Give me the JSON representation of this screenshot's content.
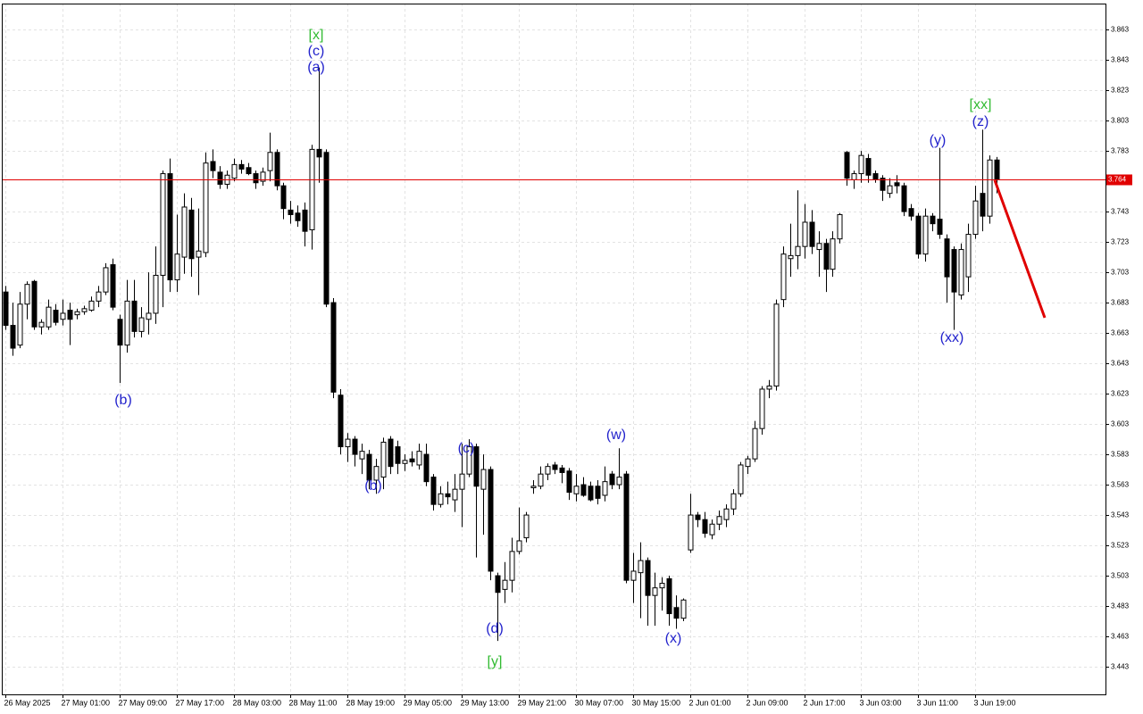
{
  "chart_data": {
    "type": "candlestick",
    "up_color": "#ffffff",
    "down_color": "#000000",
    "wick_color": "#000000",
    "price_line_color": "#e00000",
    "grid": true,
    "xlim": [
      -0.5,
      154.25
    ],
    "ylim": [
      3.4248,
      3.8801
    ],
    "yticks": [
      3.863,
      3.843,
      3.823,
      3.803,
      3.783,
      3.743,
      3.723,
      3.703,
      3.683,
      3.663,
      3.643,
      3.623,
      3.603,
      3.583,
      3.563,
      3.543,
      3.523,
      3.503,
      3.483,
      3.463,
      3.443
    ],
    "current_price": 3.764,
    "xticks": [
      {
        "value": 0,
        "label": "26 May 2025"
      },
      {
        "value": 8,
        "label": "27 May 01:00"
      },
      {
        "value": 16,
        "label": "27 May 09:00"
      },
      {
        "value": 24,
        "label": "27 May 17:00"
      },
      {
        "value": 32,
        "label": "28 May 03:00"
      },
      {
        "value": 40,
        "label": "28 May 11:00"
      },
      {
        "value": 48,
        "label": "28 May 19:00"
      },
      {
        "value": 56,
        "label": "29 May 05:00"
      },
      {
        "value": 64,
        "label": "29 May 13:00"
      },
      {
        "value": 72,
        "label": "29 May 21:00"
      },
      {
        "value": 80,
        "label": "30 May 07:00"
      },
      {
        "value": 88,
        "label": "30 May 15:00"
      },
      {
        "value": 96,
        "label": "2 Jun 01:00"
      },
      {
        "value": 104,
        "label": "2 Jun 09:00"
      },
      {
        "value": 112,
        "label": "2 Jun 17:00"
      },
      {
        "value": 120,
        "label": "3 Jun 03:00"
      },
      {
        "value": 128,
        "label": "3 Jun 11:00"
      },
      {
        "value": 136,
        "label": "3 Jun 19:00"
      }
    ],
    "open": [
      3.69,
      3.668,
      3.655,
      3.682,
      3.697,
      3.667,
      3.667,
      3.678,
      3.672,
      3.678,
      3.675,
      3.677,
      3.678,
      3.684,
      3.69,
      3.708,
      3.672,
      3.655,
      3.684,
      3.664,
      3.672,
      3.676,
      3.701,
      3.768,
      3.698,
      3.713,
      3.744,
      3.713,
      3.716,
      3.776,
      3.769,
      3.761,
      3.765,
      3.774,
      3.772,
      3.768,
      3.763,
      3.77,
      3.782,
      3.76,
      3.744,
      3.742,
      3.744,
      3.731,
      3.784,
      3.782,
      3.683,
      3.622,
      3.588,
      3.593,
      3.58,
      3.583,
      3.566,
      3.568,
      3.593,
      3.588,
      3.577,
      3.58,
      3.576,
      3.583,
      3.568,
      3.55,
      3.557,
      3.553,
      3.56,
      3.57,
      3.588,
      3.56,
      3.573,
      3.503,
      3.494,
      3.5,
      3.519,
      3.528,
      3.561,
      3.562,
      3.57,
      3.576,
      3.574,
      3.572,
      3.557,
      3.563,
      3.562,
      3.562,
      3.556,
      3.57,
      3.563,
      3.57,
      3.5,
      3.505,
      3.513,
      3.49,
      3.495,
      3.501,
      3.482,
      3.475,
      3.52,
      3.543,
      3.54,
      3.53,
      3.537,
      3.54,
      3.547,
      3.557,
      3.575,
      3.58,
      3.6,
      3.626,
      3.628,
      3.685,
      3.712,
      3.714,
      3.72,
      3.736,
      3.718,
      3.722,
      3.705,
      3.725,
      3.782,
      3.764,
      3.768,
      3.778,
      3.768,
      3.765,
      3.755,
      3.762,
      3.76,
      3.745,
      3.74,
      3.715,
      3.74,
      3.738,
      3.725,
      3.718,
      3.688,
      3.7,
      3.728,
      3.755,
      3.74,
      3.777
    ],
    "high": [
      3.694,
      3.683,
      3.69,
      3.697,
      3.698,
      3.672,
      3.685,
      3.682,
      3.685,
      3.683,
      3.679,
      3.681,
      3.687,
      3.694,
      3.709,
      3.712,
      3.675,
      3.698,
      3.698,
      3.68,
      3.703,
      3.72,
      3.77,
      3.778,
      3.741,
      3.755,
      3.752,
      3.745,
      3.782,
      3.784,
      3.773,
      3.77,
      3.778,
      3.777,
      3.775,
      3.77,
      3.772,
      3.795,
      3.784,
      3.762,
      3.75,
      3.747,
      3.749,
      3.787,
      3.838,
      3.784,
      3.686,
      3.626,
      3.597,
      3.595,
      3.59,
      3.586,
      3.58,
      3.594,
      3.595,
      3.592,
      3.583,
      3.585,
      3.59,
      3.59,
      3.57,
      3.562,
      3.565,
      3.57,
      3.59,
      3.593,
      3.59,
      3.583,
      3.575,
      3.505,
      3.512,
      3.528,
      3.548,
      3.545,
      3.566,
      3.575,
      3.577,
      3.578,
      3.576,
      3.574,
      3.57,
      3.568,
      3.565,
      3.566,
      3.575,
      3.572,
      3.587,
      3.572,
      3.518,
      3.525,
      3.515,
      3.505,
      3.502,
      3.503,
      3.49,
      3.488,
      3.557,
      3.545,
      3.545,
      3.54,
      3.546,
      3.55,
      3.56,
      3.578,
      3.582,
      3.605,
      3.628,
      3.632,
      3.685,
      3.72,
      3.735,
      3.757,
      3.748,
      3.744,
      3.73,
      3.725,
      3.73,
      3.742,
      3.783,
      3.77,
      3.783,
      3.781,
      3.77,
      3.767,
      3.765,
      3.767,
      3.762,
      3.748,
      3.742,
      3.745,
      3.742,
      3.785,
      3.728,
      3.72,
      3.722,
      3.735,
      3.76,
      3.797,
      3.78,
      3.779
    ],
    "low": [
      3.665,
      3.648,
      3.653,
      3.672,
      3.665,
      3.662,
      3.665,
      3.668,
      3.668,
      3.655,
      3.672,
      3.675,
      3.677,
      3.68,
      3.688,
      3.678,
      3.63,
      3.65,
      3.66,
      3.66,
      3.662,
      3.669,
      3.68,
      3.69,
      3.69,
      3.702,
      3.7,
      3.688,
      3.713,
      3.765,
      3.758,
      3.758,
      3.763,
      3.768,
      3.767,
      3.758,
      3.76,
      3.763,
      3.757,
      3.738,
      3.735,
      3.733,
      3.72,
      3.718,
      3.762,
      3.68,
      3.62,
      3.583,
      3.578,
      3.575,
      3.57,
      3.56,
      3.557,
      3.56,
      3.57,
      3.57,
      3.572,
      3.575,
      3.573,
      3.562,
      3.546,
      3.548,
      3.55,
      3.545,
      3.535,
      3.568,
      3.515,
      3.53,
      3.5,
      3.46,
      3.485,
      3.492,
      3.517,
      3.525,
      3.557,
      3.56,
      3.566,
      3.57,
      3.564,
      3.553,
      3.552,
      3.555,
      3.552,
      3.55,
      3.552,
      3.56,
      3.56,
      3.498,
      3.485,
      3.475,
      3.47,
      3.47,
      3.48,
      3.47,
      3.468,
      3.473,
      3.518,
      3.535,
      3.528,
      3.527,
      3.533,
      3.535,
      3.543,
      3.555,
      3.57,
      3.578,
      3.596,
      3.62,
      3.625,
      3.68,
      3.7,
      3.705,
      3.712,
      3.715,
      3.7,
      3.69,
      3.7,
      3.722,
      3.76,
      3.758,
      3.762,
      3.762,
      3.762,
      3.75,
      3.752,
      3.755,
      3.74,
      3.737,
      3.712,
      3.71,
      3.73,
      3.725,
      3.683,
      3.665,
      3.685,
      3.69,
      3.725,
      3.73,
      3.735,
      3.755
    ],
    "close": [
      3.668,
      3.653,
      3.682,
      3.695,
      3.667,
      3.67,
      3.68,
      3.67,
      3.676,
      3.672,
      3.677,
      3.679,
      3.684,
      3.69,
      3.706,
      3.68,
      3.655,
      3.684,
      3.664,
      3.673,
      3.676,
      3.701,
      3.768,
      3.698,
      3.715,
      3.746,
      3.712,
      3.717,
      3.775,
      3.77,
      3.761,
      3.767,
      3.774,
      3.771,
      3.768,
      3.762,
      3.769,
      3.782,
      3.76,
      3.745,
      3.741,
      3.737,
      3.73,
      3.784,
      3.779,
      3.682,
      3.624,
      3.588,
      3.593,
      3.583,
      3.585,
      3.566,
      3.575,
      3.591,
      3.575,
      3.577,
      3.579,
      3.578,
      3.585,
      3.565,
      3.55,
      3.557,
      3.555,
      3.56,
      3.57,
      3.588,
      3.562,
      3.573,
      3.506,
      3.492,
      3.5,
      3.519,
      3.526,
      3.543,
      3.562,
      3.57,
      3.575,
      3.573,
      3.571,
      3.558,
      3.562,
      3.556,
      3.553,
      3.554,
      3.565,
      3.563,
      3.568,
      3.5,
      3.506,
      3.513,
      3.49,
      3.495,
      3.498,
      3.478,
      3.475,
      3.487,
      3.543,
      3.54,
      3.531,
      3.537,
      3.542,
      3.547,
      3.557,
      3.576,
      3.58,
      3.6,
      3.626,
      3.628,
      3.682,
      3.715,
      3.714,
      3.72,
      3.736,
      3.72,
      3.722,
      3.705,
      3.725,
      3.741,
      3.765,
      3.768,
      3.78,
      3.767,
      3.764,
      3.757,
      3.76,
      3.76,
      3.743,
      3.74,
      3.715,
      3.74,
      3.735,
      3.728,
      3.7,
      3.69,
      3.718,
      3.728,
      3.75,
      3.74,
      3.777,
      3.764
    ],
    "wave_labels": [
      {
        "text": "[x]",
        "color": "#33bb33"
      },
      {
        "text": "(c)",
        "color": "#2222cc"
      },
      {
        "text": "(a)",
        "color": "#2222cc"
      },
      {
        "text": "(b)",
        "color": "#2222cc"
      },
      {
        "text": "(b)",
        "color": "#2222cc"
      },
      {
        "text": "(c)",
        "color": "#2222cc"
      },
      {
        "text": "(d)",
        "color": "#2222cc"
      },
      {
        "text": "[y]",
        "color": "#33bb33"
      },
      {
        "text": "(w)",
        "color": "#2222cc"
      },
      {
        "text": "(x)",
        "color": "#2222cc"
      },
      {
        "text": "(y)",
        "color": "#2222cc"
      },
      {
        "text": "(xx)",
        "color": "#2222cc"
      },
      {
        "text": "(z)",
        "color": "#2222cc"
      },
      {
        "text": "[xx]",
        "color": "#33bb33"
      }
    ]
  }
}
